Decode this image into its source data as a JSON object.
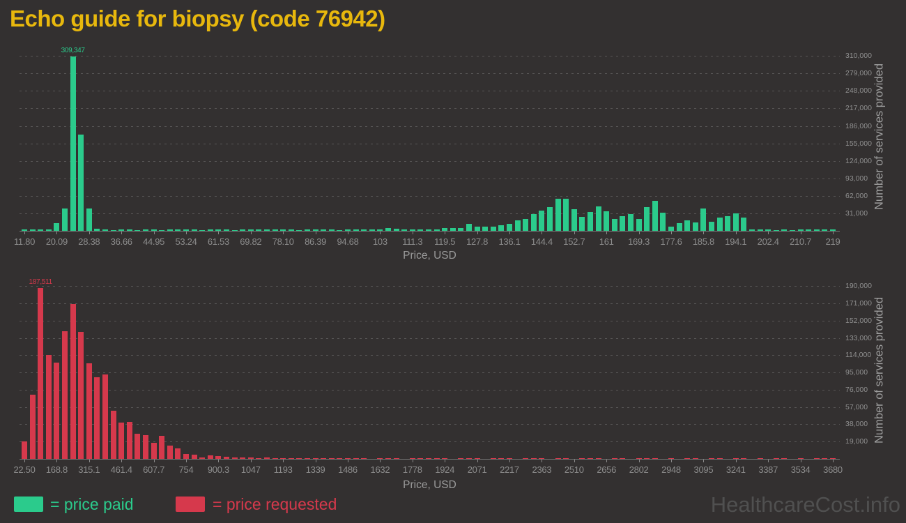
{
  "title": "Echo guide for biopsy (code 76942)",
  "watermark": "HealthcareCost.info",
  "legend": {
    "paid_label": "= price paid",
    "requested_label": "= price requested"
  },
  "colors": {
    "background": "#333030",
    "price_paid": "#2BCB8C",
    "price_requested": "#D6394C",
    "title": "#E8B80D",
    "tick_text": "#8F8F8F",
    "watermark": "#505050"
  },
  "chart_data": [
    {
      "type": "bar",
      "series_name": "price paid",
      "color": "#2BCB8C",
      "xlabel": "Price, USD",
      "ylabel": "Number of services provided",
      "ylim": [
        0,
        335000
      ],
      "grid": "horizontal-dashed",
      "peak_annotation": "309,347",
      "peak_index": 6,
      "x_tick_labels": [
        "11.80",
        "20.09",
        "28.38",
        "36.66",
        "44.95",
        "53.24",
        "61.53",
        "69.82",
        "78.10",
        "86.39",
        "94.68",
        "103",
        "111.3",
        "119.5",
        "127.8",
        "136.1",
        "144.4",
        "152.7",
        "161",
        "169.3",
        "177.6",
        "185.8",
        "194.1",
        "202.4",
        "210.7",
        "219"
      ],
      "y_tick_labels": [
        "31,000",
        "62,000",
        "93,000",
        "124,000",
        "155,000",
        "186,000",
        "217,000",
        "248,000",
        "279,000",
        "310,000"
      ],
      "y_tick_values": [
        31000,
        62000,
        93000,
        124000,
        155000,
        186000,
        217000,
        248000,
        279000,
        310000
      ],
      "values": [
        2000,
        2000,
        2200,
        2500,
        14000,
        40000,
        309347,
        170000,
        40000,
        4000,
        2000,
        1800,
        2000,
        2000,
        1800,
        2000,
        2200,
        1800,
        2000,
        2000,
        2500,
        2000,
        1800,
        2000,
        2000,
        2200,
        1800,
        2000,
        2500,
        2000,
        3000,
        2500,
        2000,
        2200,
        1800,
        2000,
        2500,
        2000,
        2200,
        1800,
        2000,
        2500,
        3000,
        2500,
        2000,
        5000,
        4000,
        2500,
        2200,
        2500,
        2800,
        2000,
        5000,
        5000,
        5000,
        12500,
        7500,
        7000,
        7500,
        10000,
        12500,
        18500,
        21000,
        30000,
        36000,
        41500,
        57000,
        57000,
        38500,
        25000,
        33500,
        43500,
        35000,
        21000,
        26000,
        30000,
        21000,
        42500,
        53000,
        32000,
        8000,
        13000,
        18000,
        15000,
        40000,
        16000,
        24000,
        26000,
        31000,
        23000,
        2500,
        2000,
        2000,
        1800,
        2000,
        1500,
        3000,
        3000,
        2000,
        2500,
        2000
      ]
    },
    {
      "type": "bar",
      "series_name": "price requested",
      "color": "#D6394C",
      "xlabel": "Price, USD",
      "ylabel": "Number of services provided",
      "ylim": [
        0,
        194000
      ],
      "grid": "horizontal-dashed",
      "peak_annotation": "187,511",
      "peak_index": 2,
      "x_tick_labels": [
        "22.50",
        "168.8",
        "315.1",
        "461.4",
        "607.7",
        "754",
        "900.3",
        "1047",
        "1193",
        "1339",
        "1486",
        "1632",
        "1778",
        "1924",
        "2071",
        "2217",
        "2363",
        "2510",
        "2656",
        "2802",
        "2948",
        "3095",
        "3241",
        "3387",
        "3534",
        "3680"
      ],
      "y_tick_labels": [
        "19,000",
        "38,000",
        "57,000",
        "76,000",
        "95,000",
        "114,000",
        "133,000",
        "152,000",
        "171,000",
        "190,000"
      ],
      "y_tick_values": [
        19000,
        38000,
        57000,
        76000,
        95000,
        114000,
        133000,
        152000,
        171000,
        190000
      ],
      "values": [
        19400,
        70500,
        187511,
        114400,
        105700,
        140400,
        170600,
        139400,
        105200,
        89900,
        92900,
        53100,
        39600,
        40600,
        27600,
        25800,
        17900,
        25500,
        14300,
        11500,
        5400,
        4600,
        1500,
        4000,
        3000,
        2000,
        1500,
        1200,
        1200,
        1000,
        1200,
        1000,
        1000,
        1000,
        900,
        1000,
        900,
        1000,
        900,
        800,
        900,
        800,
        800,
        0,
        800,
        700,
        800,
        0,
        700,
        800,
        700,
        800,
        700,
        0,
        700,
        600,
        700,
        0,
        600,
        700,
        600,
        0,
        600,
        700,
        600,
        0,
        600,
        600,
        0,
        600,
        700,
        600,
        0,
        600,
        600,
        0,
        600,
        700,
        600,
        0,
        600,
        0,
        600,
        600,
        0,
        600,
        700,
        0,
        600,
        600,
        0,
        600,
        0,
        600,
        600,
        0,
        700,
        0,
        600,
        600,
        800
      ]
    }
  ]
}
